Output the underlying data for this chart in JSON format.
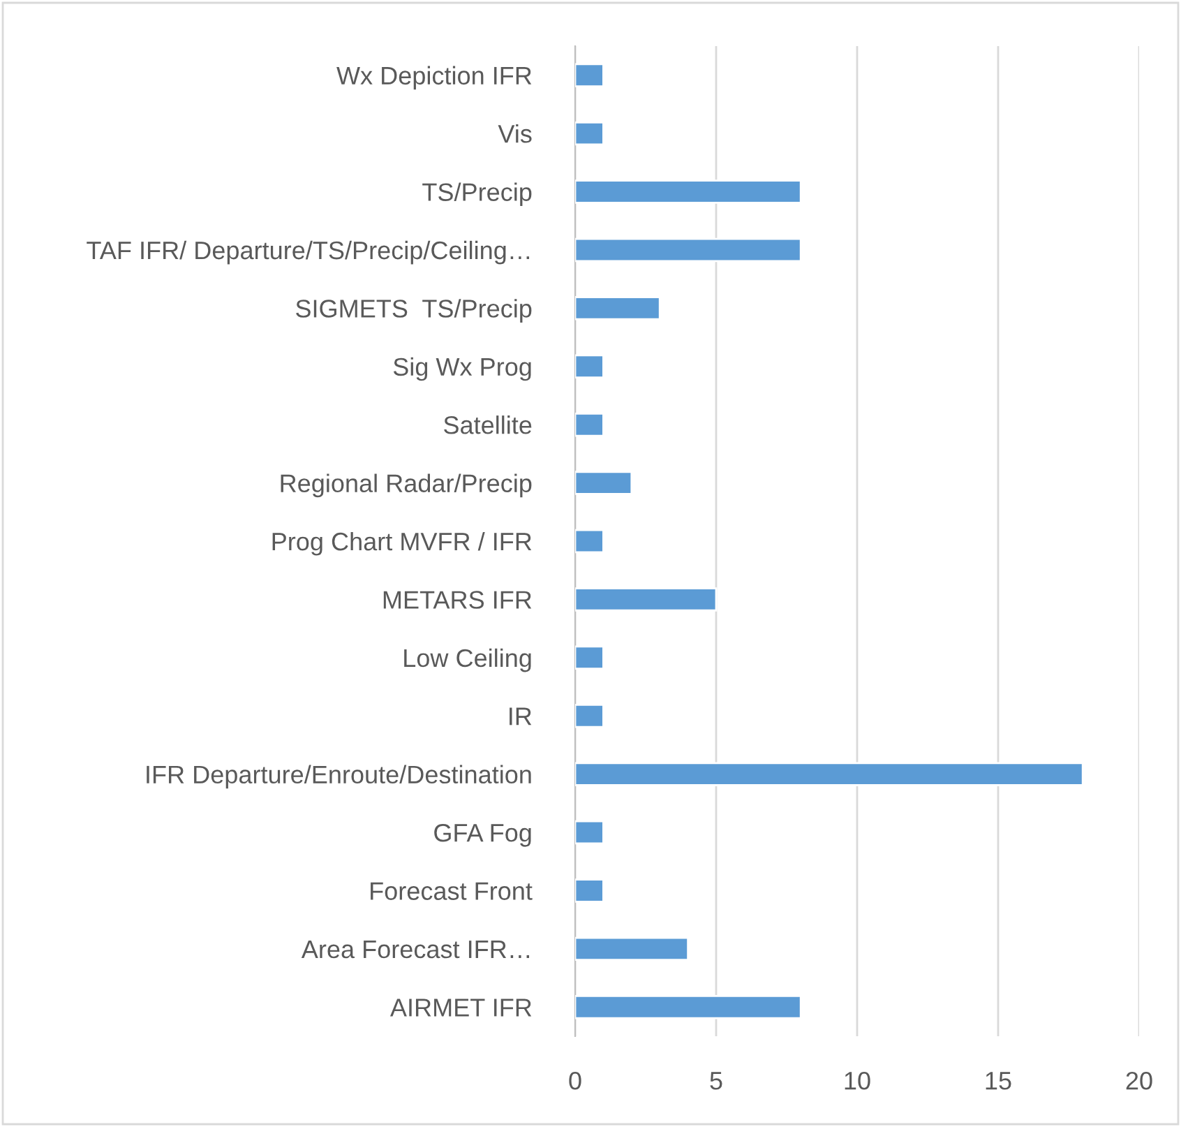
{
  "chart_data": {
    "type": "bar",
    "orientation": "horizontal",
    "categories": [
      "Wx Depiction IFR",
      "Vis",
      "TS/Precip",
      "TAF IFR/ Departure/TS/Precip/Ceiling…",
      "SIGMETS  TS/Precip",
      "Sig Wx Prog",
      "Satellite",
      "Regional Radar/Precip",
      "Prog Chart MVFR / IFR",
      "METARS IFR",
      "Low Ceiling",
      "IR",
      "IFR Departure/Enroute/Destination",
      "GFA Fog",
      "Forecast Front",
      "Area Forecast IFR…",
      "AIRMET IFR"
    ],
    "values": [
      1,
      1,
      8,
      8,
      3,
      1,
      1,
      2,
      1,
      5,
      1,
      1,
      18,
      1,
      1,
      4,
      8
    ],
    "color": "#5b9bd5",
    "xlim": [
      0,
      20
    ],
    "xticks": [
      0,
      5,
      10,
      15,
      20
    ],
    "grid": "x",
    "legend": false
  }
}
